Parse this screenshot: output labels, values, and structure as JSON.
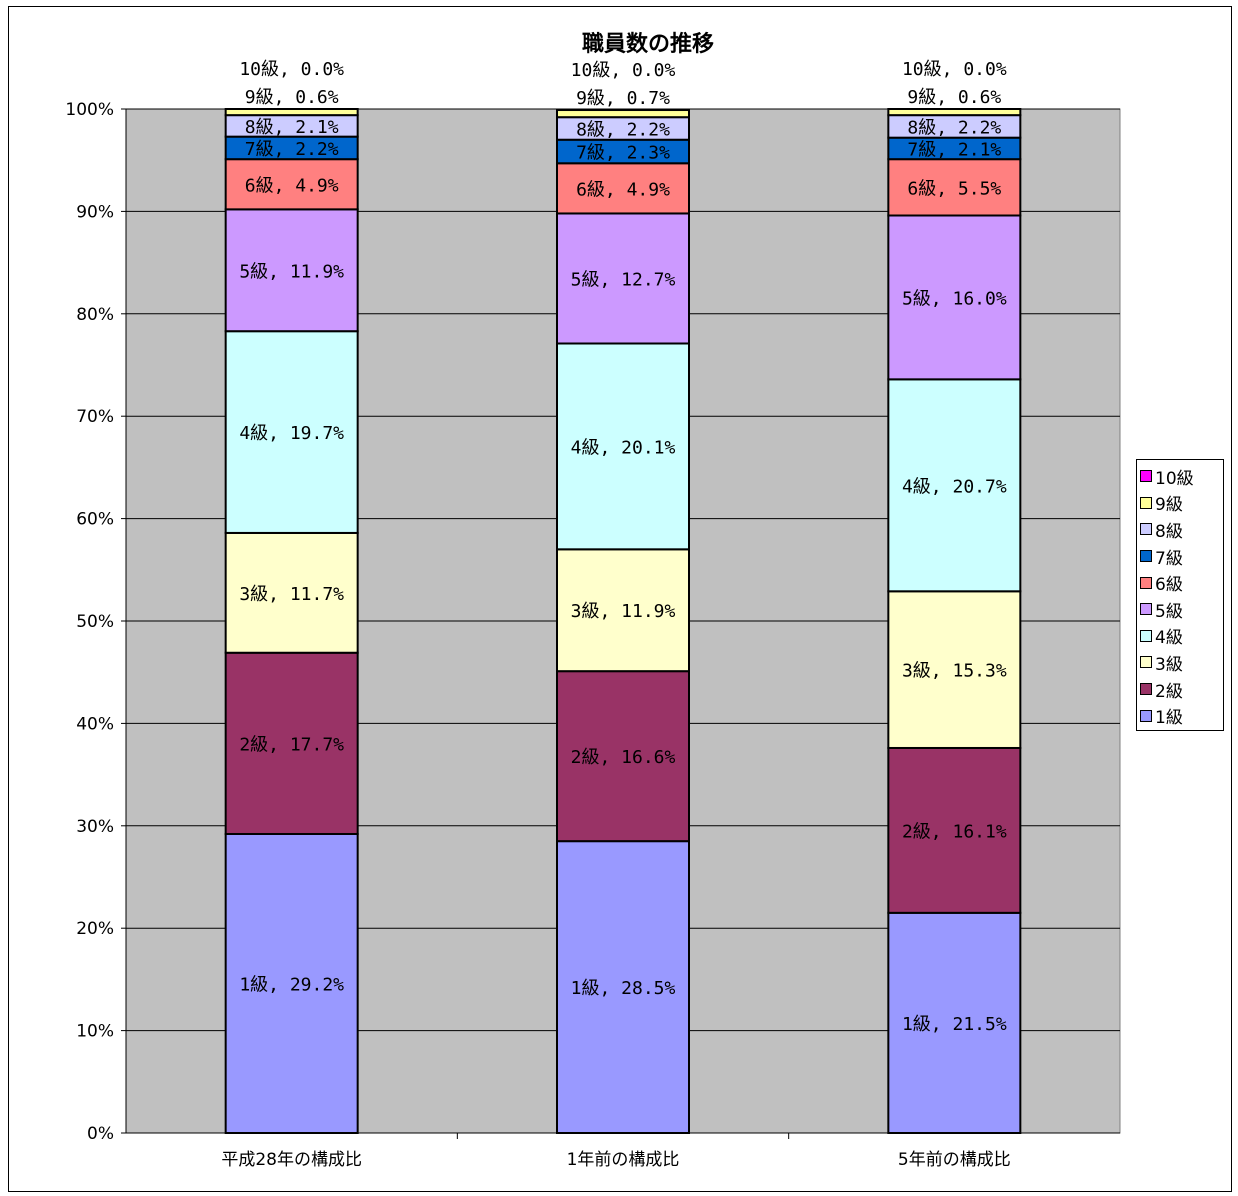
{
  "chart_data": {
    "type": "bar",
    "stacked": true,
    "title": "職員数の推移",
    "categories": [
      "平成28年の構成比",
      "1年前の構成比",
      "5年前の構成比"
    ],
    "ylim": [
      0,
      100
    ],
    "y_ticks": [
      "0%",
      "10%",
      "20%",
      "30%",
      "40%",
      "50%",
      "60%",
      "70%",
      "80%",
      "90%",
      "100%"
    ],
    "grid": true,
    "legend_position": "right",
    "series": [
      {
        "name": "1級",
        "color": "#9999ff",
        "values": [
          29.2,
          28.5,
          21.5
        ],
        "labels": [
          "1級, 29.2%",
          "1級, 28.5%",
          "1級, 21.5%"
        ]
      },
      {
        "name": "2級",
        "color": "#993366",
        "values": [
          17.7,
          16.6,
          16.1
        ],
        "labels": [
          "2級, 17.7%",
          "2級, 16.6%",
          "2級, 16.1%"
        ]
      },
      {
        "name": "3級",
        "color": "#ffffcc",
        "values": [
          11.7,
          11.9,
          15.3
        ],
        "labels": [
          "3級, 11.7%",
          "3級, 11.9%",
          "3級, 15.3%"
        ]
      },
      {
        "name": "4級",
        "color": "#ccffff",
        "values": [
          19.7,
          20.1,
          20.7
        ],
        "labels": [
          "4級, 19.7%",
          "4級, 20.1%",
          "4級, 20.7%"
        ]
      },
      {
        "name": "5級",
        "color": "#cc99ff",
        "values": [
          11.9,
          12.7,
          16.0
        ],
        "labels": [
          "5級, 11.9%",
          "5級, 12.7%",
          "5級, 16.0%"
        ]
      },
      {
        "name": "6級",
        "color": "#ff8080",
        "values": [
          4.9,
          4.9,
          5.5
        ],
        "labels": [
          "6級, 4.9%",
          "6級, 4.9%",
          "6級, 5.5%"
        ]
      },
      {
        "name": "7級",
        "color": "#0066cc",
        "values": [
          2.2,
          2.3,
          2.1
        ],
        "labels": [
          "7級, 2.2%",
          "7級, 2.3%",
          "7級, 2.1%"
        ]
      },
      {
        "name": "8級",
        "color": "#ccccff",
        "values": [
          2.1,
          2.2,
          2.2
        ],
        "labels": [
          "8級, 2.1%",
          "8級, 2.2%",
          "8級, 2.2%"
        ]
      },
      {
        "name": "9級",
        "color": "#ffff99",
        "values": [
          0.6,
          0.7,
          0.6
        ],
        "labels": [
          "9級, 0.6%",
          "9級, 0.7%",
          "9級, 0.6%"
        ]
      },
      {
        "name": "10級",
        "color": "#ff00ff",
        "values": [
          0.0,
          0.0,
          0.0
        ],
        "labels": [
          "10級, 0.0%",
          "10級, 0.0%",
          "10級, 0.0%"
        ]
      }
    ],
    "plot_background": "#c0c0c0"
  }
}
